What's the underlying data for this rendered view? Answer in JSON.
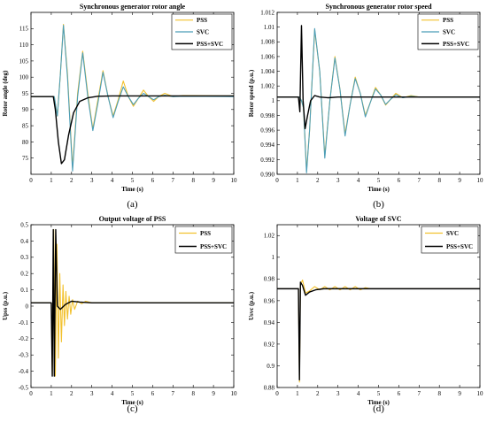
{
  "colors": {
    "pss": "#f2c12e",
    "svc": "#4b9db8",
    "pss_svc": "#000000"
  },
  "chart_data": [
    {
      "id": "a",
      "type": "line",
      "panel_label": "(a)",
      "title": "Synchronous generator rotor angle",
      "xlabel": "Time (s)",
      "ylabel": "Rotor angle (deg)",
      "xlim": [
        0,
        10
      ],
      "ylim": [
        70,
        120
      ],
      "xticks": [
        0,
        1,
        2,
        3,
        4,
        5,
        6,
        7,
        8,
        9,
        10
      ],
      "yticks": [
        75,
        80,
        85,
        90,
        95,
        100,
        105,
        110,
        115
      ],
      "grid": false,
      "legend": "top-right",
      "series": [
        {
          "name": "PSS",
          "color_key": "pss",
          "x": [
            0,
            1.15,
            1.3,
            1.45,
            1.6,
            1.8,
            2.05,
            2.3,
            2.55,
            2.8,
            3.05,
            3.3,
            3.55,
            3.8,
            4.05,
            4.3,
            4.55,
            4.8,
            5.05,
            5.3,
            5.55,
            5.8,
            6.05,
            6.3,
            6.6,
            7.0,
            7.5,
            10
          ],
          "y": [
            94,
            94,
            88,
            101,
            116.3,
            101,
            72,
            95,
            108,
            95,
            84,
            93,
            102,
            94,
            88,
            93,
            98.8,
            94,
            91,
            93.5,
            96,
            94,
            92.5,
            94,
            95,
            94,
            94.3,
            94.2
          ]
        },
        {
          "name": "SVC",
          "color_key": "svc",
          "x": [
            0,
            1.15,
            1.3,
            1.45,
            1.6,
            1.8,
            2.05,
            2.3,
            2.55,
            2.8,
            3.05,
            3.3,
            3.55,
            3.8,
            4.05,
            4.3,
            4.55,
            4.8,
            5.05,
            5.3,
            5.55,
            5.8,
            6.05,
            6.3,
            6.6,
            7.0,
            7.5,
            10
          ],
          "y": [
            94,
            94,
            88,
            101,
            116,
            100,
            71,
            94,
            107.5,
            94,
            83.5,
            92,
            101.5,
            94,
            87.5,
            92.5,
            97,
            94,
            91.5,
            93.5,
            95,
            94,
            93,
            94,
            94.4,
            94,
            94.1,
            94
          ]
        },
        {
          "name": "PSS+SVC",
          "color_key": "pss_svc",
          "x": [
            0,
            1.1,
            1.2,
            1.35,
            1.5,
            1.65,
            1.85,
            2.1,
            2.4,
            2.8,
            3.3,
            4.0,
            5.0,
            10
          ],
          "y": [
            94,
            94,
            90,
            80,
            73.3,
            74.5,
            82,
            89,
            92.5,
            93.6,
            94.1,
            94.2,
            94.2,
            94.2
          ]
        }
      ]
    },
    {
      "id": "b",
      "type": "line",
      "panel_label": "(b)",
      "title": "Synchronous generator rotor speed",
      "xlabel": "Time (s)",
      "ylabel": "Rotor speed (p.u.)",
      "xlim": [
        0,
        10
      ],
      "ylim": [
        0.99,
        1.012
      ],
      "xticks": [
        0,
        1,
        2,
        3,
        4,
        5,
        6,
        7,
        8,
        9,
        10
      ],
      "yticks": [
        0.99,
        0.992,
        0.994,
        0.996,
        0.998,
        1,
        1.002,
        1.004,
        1.006,
        1.008,
        1.01,
        1.012
      ],
      "ytick_labels": [
        "0.990",
        "0.992",
        "0.994",
        "0.996",
        "0.998",
        "1",
        "1.002",
        "1.004",
        "1.006",
        "1.008",
        "1.01",
        "1.012"
      ],
      "grid": false,
      "legend": "top-right",
      "series": [
        {
          "name": "PSS",
          "color_key": "pss",
          "x": [
            0,
            1.1,
            1.2,
            1.3,
            1.45,
            1.6,
            1.85,
            2.1,
            2.35,
            2.6,
            2.85,
            3.1,
            3.35,
            3.6,
            3.85,
            4.1,
            4.35,
            4.6,
            4.85,
            5.1,
            5.35,
            5.6,
            5.85,
            6.2,
            6.6,
            7.0,
            10
          ],
          "y": [
            1.0005,
            1.0005,
            1.0,
            0.999,
            0.9905,
            0.996,
            1.0096,
            1.004,
            0.9925,
            1.0,
            1.006,
            1.0015,
            0.9955,
            0.9995,
            1.0032,
            1.001,
            0.998,
            0.9998,
            1.0018,
            1.0008,
            0.9994,
            1.0002,
            1.001,
            1.0004,
            1.0007,
            1.0005,
            1.0005
          ]
        },
        {
          "name": "SVC",
          "color_key": "svc",
          "x": [
            0,
            1.1,
            1.2,
            1.3,
            1.45,
            1.6,
            1.85,
            2.1,
            2.35,
            2.6,
            2.85,
            3.1,
            3.35,
            3.6,
            3.85,
            4.1,
            4.35,
            4.6,
            4.85,
            5.1,
            5.35,
            5.6,
            5.85,
            6.2,
            6.6,
            7.0,
            10
          ],
          "y": [
            1.0005,
            1.0005,
            1.0,
            0.999,
            0.9902,
            0.996,
            1.0098,
            1.004,
            0.9922,
            1.0,
            1.0058,
            1.0015,
            0.9952,
            0.9995,
            1.003,
            1.001,
            0.9978,
            0.9998,
            1.0016,
            1.0008,
            0.9995,
            1.0002,
            1.0008,
            1.0004,
            1.0006,
            1.0005,
            1.0005
          ]
        },
        {
          "name": "PSS+SVC",
          "color_key": "pss_svc",
          "x": [
            0,
            1.05,
            1.12,
            1.2,
            1.28,
            1.38,
            1.5,
            1.65,
            1.85,
            2.1,
            2.5,
            3.0,
            10
          ],
          "y": [
            1.0005,
            1.0005,
            0.9985,
            1.0102,
            1.0,
            0.9962,
            0.998,
            1.0,
            1.0007,
            1.0005,
            1.0004,
            1.0005,
            1.0005
          ]
        }
      ]
    },
    {
      "id": "c",
      "type": "line",
      "panel_label": "(c)",
      "title": "Output voltage of PSS",
      "xlabel": "Time (s)",
      "ylabel": "Upss (p.u.)",
      "xlim": [
        0,
        10
      ],
      "ylim": [
        -0.5,
        0.5
      ],
      "xticks": [
        0,
        1,
        2,
        3,
        4,
        5,
        6,
        7,
        8,
        9,
        10
      ],
      "yticks": [
        -0.5,
        -0.4,
        -0.3,
        -0.2,
        -0.1,
        0,
        0.1,
        0.2,
        0.3,
        0.4,
        0.5
      ],
      "grid": false,
      "legend": "top-right",
      "series": [
        {
          "name": "PSS",
          "color_key": "pss",
          "x": [
            0,
            1.0,
            1.05,
            1.12,
            1.2,
            1.28,
            1.35,
            1.42,
            1.5,
            1.58,
            1.65,
            1.72,
            1.8,
            1.88,
            1.96,
            2.05,
            2.15,
            2.3,
            2.5,
            2.7,
            3.0,
            10
          ],
          "y": [
            0.02,
            0.02,
            -0.43,
            0.47,
            -0.43,
            0.38,
            -0.32,
            0.2,
            -0.22,
            0.13,
            -0.12,
            0.09,
            -0.08,
            0.06,
            -0.05,
            0.04,
            -0.02,
            0.03,
            0.015,
            0.03,
            0.02,
            0.02
          ]
        },
        {
          "name": "PSS+SVC",
          "color_key": "pss_svc",
          "x": [
            0,
            1.0,
            1.05,
            1.1,
            1.15,
            1.22,
            1.3,
            1.45,
            1.7,
            2.0,
            2.4,
            3.0,
            10
          ],
          "y": [
            0.02,
            0.02,
            -0.43,
            0.47,
            -0.43,
            0.47,
            0.0,
            -0.02,
            0.01,
            0.03,
            0.025,
            0.02,
            0.02
          ]
        }
      ]
    },
    {
      "id": "d",
      "type": "line",
      "panel_label": "(d)",
      "title": "Voltage of SVC",
      "xlabel": "Time (s)",
      "ylabel": "Usvc (p.u.)",
      "xlim": [
        0,
        10
      ],
      "ylim": [
        0.88,
        1.03
      ],
      "xticks": [
        0,
        1,
        2,
        3,
        4,
        5,
        6,
        7,
        8,
        9,
        10
      ],
      "yticks": [
        0.88,
        0.9,
        0.92,
        0.94,
        0.96,
        0.98,
        1,
        1.02
      ],
      "grid": false,
      "legend": "top-right",
      "series": [
        {
          "name": "SVC",
          "color_key": "pss",
          "x": [
            0,
            1.05,
            1.1,
            1.15,
            1.25,
            1.4,
            1.6,
            1.85,
            2.1,
            2.35,
            2.6,
            2.85,
            3.1,
            3.35,
            3.6,
            3.85,
            4.1,
            4.35,
            4.6,
            5.0,
            10
          ],
          "y": [
            0.971,
            0.971,
            0.885,
            0.975,
            0.979,
            0.967,
            0.969,
            0.973,
            0.97,
            0.973,
            0.97,
            0.973,
            0.97,
            0.973,
            0.97,
            0.973,
            0.97,
            0.972,
            0.971,
            0.971,
            0.971
          ]
        },
        {
          "name": "PSS+SVC",
          "color_key": "pss_svc",
          "x": [
            0,
            1.05,
            1.1,
            1.15,
            1.25,
            1.4,
            1.6,
            1.9,
            2.3,
            3.0,
            10
          ],
          "y": [
            0.971,
            0.971,
            0.887,
            0.977,
            0.974,
            0.965,
            0.968,
            0.97,
            0.971,
            0.971,
            0.971
          ]
        }
      ]
    }
  ]
}
